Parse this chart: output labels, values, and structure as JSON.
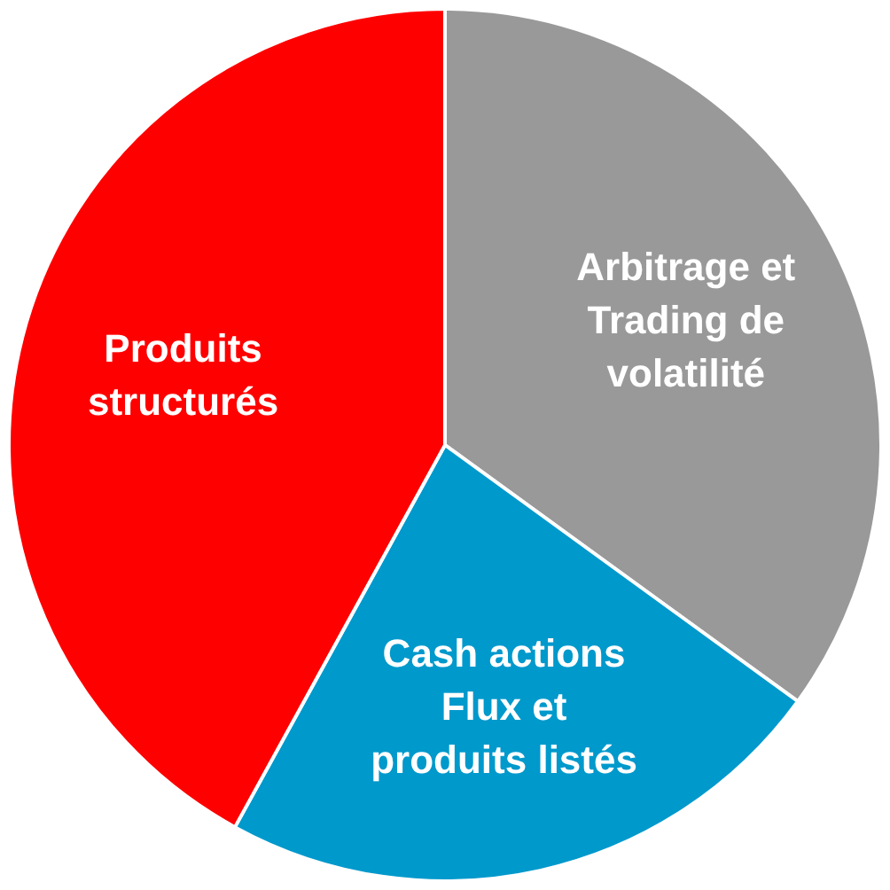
{
  "chart_data": {
    "type": "pie",
    "categories": [
      "Arbitrage et\nTrading de\nvolatilité",
      "Cash actions\nFlux et\nproduits listés",
      "Produits\nstructurés"
    ],
    "values": [
      35,
      23,
      42
    ],
    "colors": [
      "#999999",
      "#0099cc",
      "#ff0000"
    ],
    "legend": false
  }
}
